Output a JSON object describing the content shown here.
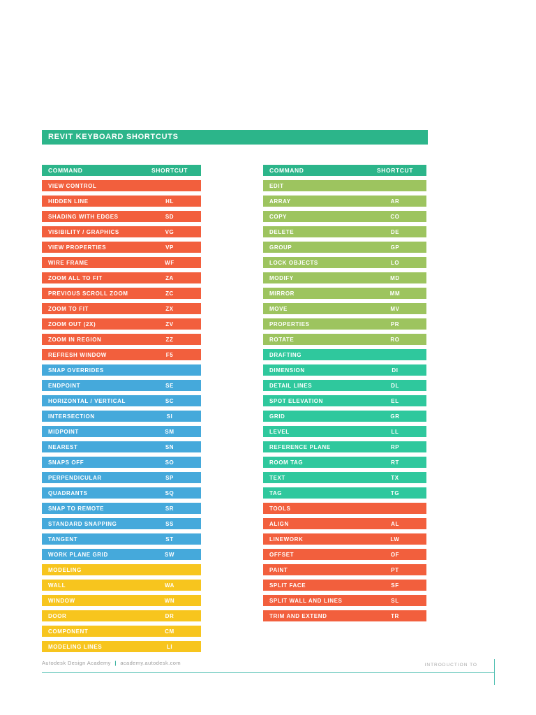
{
  "title": "REVIT KEYBOARD SHORTCUTS",
  "colors": {
    "teal": "#2CB58A",
    "mint": "#2FC89D",
    "orange": "#F25F3D",
    "blue": "#45A9DB",
    "yellow": "#F7C51E",
    "green": "#9DC45F",
    "rule": "#56C2B4",
    "footer_text": "#9B9B9B",
    "footer_sep": "#2FAE9A",
    "footer_right_text": "#A8A8A8"
  },
  "tables": [
    {
      "headers": {
        "command": "COMMAND",
        "shortcut": "SHORTCUT"
      },
      "rows": [
        {
          "label": "VIEW CONTROL",
          "shortcut": "",
          "color": "orange"
        },
        {
          "label": "HIDDEN LINE",
          "shortcut": "HL",
          "color": "orange"
        },
        {
          "label": "SHADING WITH EDGES",
          "shortcut": "SD",
          "color": "orange"
        },
        {
          "label": "VISIBILITY / GRAPHICS",
          "shortcut": "VG",
          "color": "orange"
        },
        {
          "label": "VIEW PROPERTIES",
          "shortcut": "VP",
          "color": "orange"
        },
        {
          "label": "WIRE FRAME",
          "shortcut": "WF",
          "color": "orange"
        },
        {
          "label": "ZOOM ALL TO FIT",
          "shortcut": "ZA",
          "color": "orange"
        },
        {
          "label": "PREVIOUS SCROLL ZOOM",
          "shortcut": "ZC",
          "color": "orange"
        },
        {
          "label": "ZOOM TO FIT",
          "shortcut": "ZX",
          "color": "orange"
        },
        {
          "label": "ZOOM OUT (2X)",
          "shortcut": "ZV",
          "color": "orange"
        },
        {
          "label": "ZOOM IN REGION",
          "shortcut": "ZZ",
          "color": "orange"
        },
        {
          "label": "REFRESH WINDOW",
          "shortcut": "F5",
          "color": "orange"
        },
        {
          "label": "SNAP OVERRIDES",
          "shortcut": "",
          "color": "blue"
        },
        {
          "label": "ENDPOINT",
          "shortcut": "SE",
          "color": "blue"
        },
        {
          "label": "HORIZONTAL / VERTICAL",
          "shortcut": "SC",
          "color": "blue"
        },
        {
          "label": "INTERSECTION",
          "shortcut": "SI",
          "color": "blue"
        },
        {
          "label": "MIDPOINT",
          "shortcut": "SM",
          "color": "blue"
        },
        {
          "label": "NEAREST",
          "shortcut": "SN",
          "color": "blue"
        },
        {
          "label": "SNAPS OFF",
          "shortcut": "SO",
          "color": "blue"
        },
        {
          "label": "PERPENDICULAR",
          "shortcut": "SP",
          "color": "blue"
        },
        {
          "label": "QUADRANTS",
          "shortcut": "SQ",
          "color": "blue"
        },
        {
          "label": "SNAP TO REMOTE",
          "shortcut": "SR",
          "color": "blue"
        },
        {
          "label": "STANDARD SNAPPING",
          "shortcut": "SS",
          "color": "blue"
        },
        {
          "label": "TANGENT",
          "shortcut": "ST",
          "color": "blue"
        },
        {
          "label": "WORK PLANE GRID",
          "shortcut": "SW",
          "color": "blue"
        },
        {
          "label": "MODELING",
          "shortcut": "",
          "color": "yellow"
        },
        {
          "label": "WALL",
          "shortcut": "WA",
          "color": "yellow"
        },
        {
          "label": "WINDOW",
          "shortcut": "WN",
          "color": "yellow"
        },
        {
          "label": "DOOR",
          "shortcut": "DR",
          "color": "yellow"
        },
        {
          "label": "COMPONENT",
          "shortcut": "CM",
          "color": "yellow"
        },
        {
          "label": "MODELING LINES",
          "shortcut": "LI",
          "color": "yellow"
        }
      ]
    },
    {
      "headers": {
        "command": "COMMAND",
        "shortcut": "SHORTCUT"
      },
      "rows": [
        {
          "label": "EDIT",
          "shortcut": "",
          "color": "green"
        },
        {
          "label": "ARRAY",
          "shortcut": "AR",
          "color": "green"
        },
        {
          "label": "COPY",
          "shortcut": "CO",
          "color": "green"
        },
        {
          "label": "DELETE",
          "shortcut": "DE",
          "color": "green"
        },
        {
          "label": "GROUP",
          "shortcut": "GP",
          "color": "green"
        },
        {
          "label": "LOCK OBJECTS",
          "shortcut": "LO",
          "color": "green"
        },
        {
          "label": "MODIFY",
          "shortcut": "MD",
          "color": "green"
        },
        {
          "label": "MIRROR",
          "shortcut": "MM",
          "color": "green"
        },
        {
          "label": "MOVE",
          "shortcut": "MV",
          "color": "green"
        },
        {
          "label": "PROPERTIES",
          "shortcut": "PR",
          "color": "green"
        },
        {
          "label": "ROTATE",
          "shortcut": "RO",
          "color": "green"
        },
        {
          "label": "DRAFTING",
          "shortcut": "",
          "color": "mint"
        },
        {
          "label": "DIMENSION",
          "shortcut": "DI",
          "color": "mint"
        },
        {
          "label": "DETAIL LINES",
          "shortcut": "DL",
          "color": "mint"
        },
        {
          "label": "SPOT ELEVATION",
          "shortcut": "EL",
          "color": "mint"
        },
        {
          "label": "GRID",
          "shortcut": "GR",
          "color": "mint"
        },
        {
          "label": "LEVEL",
          "shortcut": "LL",
          "color": "mint"
        },
        {
          "label": "REFERENCE PLANE",
          "shortcut": "RP",
          "color": "mint"
        },
        {
          "label": "ROOM TAG",
          "shortcut": "RT",
          "color": "mint"
        },
        {
          "label": "TEXT",
          "shortcut": "TX",
          "color": "mint"
        },
        {
          "label": "TAG",
          "shortcut": "TG",
          "color": "mint"
        },
        {
          "label": "TOOLS",
          "shortcut": "",
          "color": "orange"
        },
        {
          "label": "ALIGN",
          "shortcut": "AL",
          "color": "orange"
        },
        {
          "label": "LINEWORK",
          "shortcut": "LW",
          "color": "orange"
        },
        {
          "label": "OFFSET",
          "shortcut": "OF",
          "color": "orange"
        },
        {
          "label": "PAINT",
          "shortcut": "PT",
          "color": "orange"
        },
        {
          "label": "SPLIT FACE",
          "shortcut": "SF",
          "color": "orange"
        },
        {
          "label": "SPLIT WALL AND LINES",
          "shortcut": "SL",
          "color": "orange"
        },
        {
          "label": "TRIM AND EXTEND",
          "shortcut": "TR",
          "color": "orange"
        }
      ]
    }
  ],
  "footer": {
    "brand": "Autodesk Design Academy",
    "separator": "|",
    "url": "academy.autodesk.com",
    "right": "INTRODUCTION TO"
  }
}
